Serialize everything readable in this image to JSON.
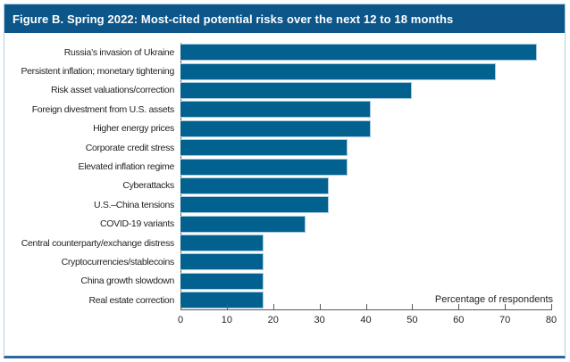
{
  "figure": {
    "title": "Figure B. Spring 2022: Most-cited potential risks over the next 12 to 18 months"
  },
  "chart_data": {
    "type": "bar",
    "orientation": "horizontal",
    "title": "Figure B. Spring 2022: Most-cited potential risks over the next 12 to 18 months",
    "categories": [
      "Russia’s invasion of Ukraine",
      "Persistent inflation; monetary tightening",
      "Risk asset valuations/correction",
      "Foreign divestment from U.S. assets",
      "Higher energy prices",
      "Corporate credit stress",
      "Elevated inflation regime",
      "Cyberattacks",
      "U.S.–China tensions",
      "COVID-19 variants",
      "Central counterparty/exchange distress",
      "Cryptocurrencies/stablecoins",
      "China growth slowdown",
      "Real estate correction"
    ],
    "values": [
      77,
      68,
      50,
      41,
      41,
      36,
      36,
      32,
      32,
      27,
      18,
      18,
      18,
      18
    ],
    "xlabel": "Percentage of respondents",
    "ylabel": "",
    "xlim": [
      0,
      80
    ],
    "x_ticks": [
      0,
      10,
      20,
      30,
      40,
      50,
      60,
      70,
      80
    ],
    "grid": false,
    "legend": "none",
    "colors": {
      "bar_fill": "#02618f",
      "bar_outline": "#a9cadf",
      "title_band_bg": "#0d5689",
      "title_band_text": "#ffffff",
      "axis_line": "#58595b",
      "text": "#231f20",
      "frame_border": "#b3cfe2",
      "frame_bottom_rule": "#2d67a1"
    }
  }
}
